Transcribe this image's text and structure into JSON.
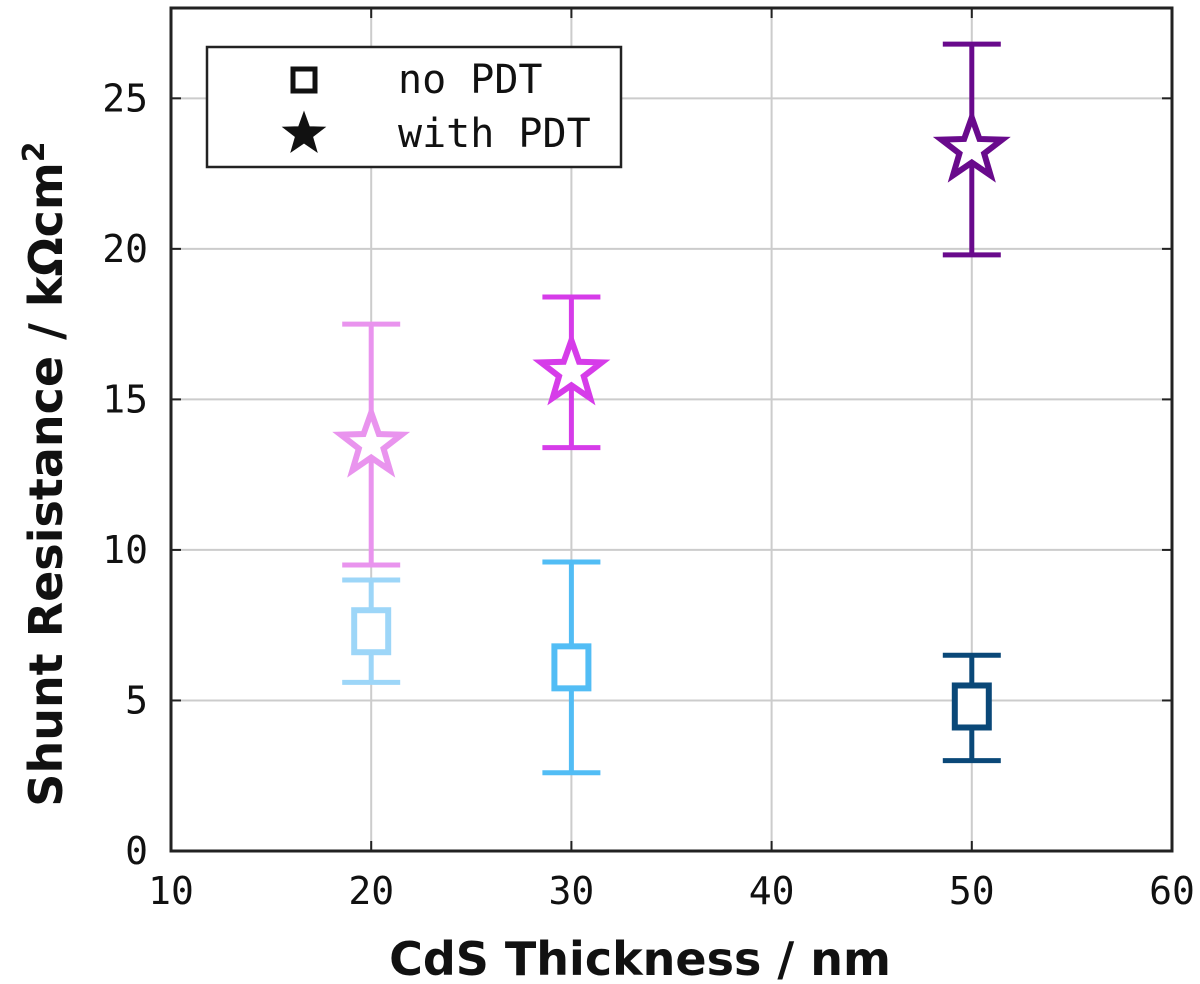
{
  "chart_data": {
    "type": "scatter",
    "xlabel": "CdS Thickness / nm",
    "ylabel_main": "Shunt Resistance / kΩcm",
    "ylabel_sup": "2",
    "xlim": [
      10,
      60
    ],
    "ylim": [
      0,
      28
    ],
    "xticks": [
      "10",
      "20",
      "30",
      "40",
      "50",
      "60"
    ],
    "yticks": [
      "0",
      "5",
      "10",
      "15",
      "20",
      "25"
    ],
    "grid": true,
    "legend_position": "top-left",
    "legend": [
      {
        "label": "no PDT",
        "marker": "square"
      },
      {
        "label": "with PDT",
        "marker": "star"
      }
    ],
    "series": [
      {
        "name": "no PDT",
        "marker": "square",
        "points": [
          {
            "x": 20,
            "y": 7.3,
            "err_low": 5.6,
            "err_high": 9.0,
            "color": "#9dd6f8"
          },
          {
            "x": 30,
            "y": 6.1,
            "err_low": 2.6,
            "err_high": 9.6,
            "color": "#52bdf5"
          },
          {
            "x": 50,
            "y": 4.8,
            "err_low": 3.0,
            "err_high": 6.5,
            "color": "#0a4878"
          }
        ]
      },
      {
        "name": "with PDT",
        "marker": "star",
        "points": [
          {
            "x": 20,
            "y": 13.5,
            "err_low": 9.5,
            "err_high": 17.5,
            "color": "#e994ee"
          },
          {
            "x": 30,
            "y": 15.9,
            "err_low": 13.4,
            "err_high": 18.4,
            "color": "#d63ce9"
          },
          {
            "x": 50,
            "y": 23.3,
            "err_low": 19.8,
            "err_high": 26.8,
            "color": "#690a8c"
          }
        ]
      }
    ]
  }
}
